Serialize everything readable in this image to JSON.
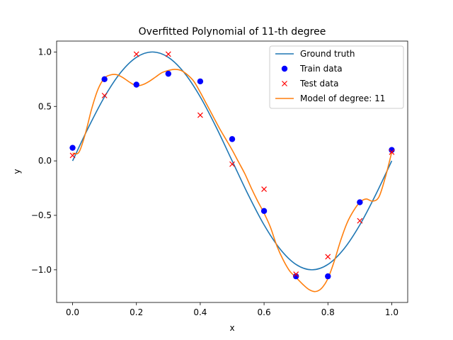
{
  "chart_data": {
    "type": "line",
    "title": "Overfitted Polynomial of 11-th degree",
    "xlabel": "x",
    "ylabel": "y",
    "xlim": [
      -0.05,
      1.05
    ],
    "ylim": [
      -1.3,
      1.1
    ],
    "xticks": [
      0.0,
      0.2,
      0.4,
      0.6,
      0.8,
      1.0
    ],
    "xtick_labels": [
      "0.0",
      "0.2",
      "0.4",
      "0.6",
      "0.8",
      "1.0"
    ],
    "yticks": [
      -1.0,
      -0.5,
      0.0,
      0.5,
      1.0
    ],
    "ytick_labels": [
      "−1.0",
      "−0.5",
      "0.0",
      "0.5",
      "1.0"
    ],
    "grid": false,
    "legend_position": "top-right",
    "series": [
      {
        "name": "Ground truth",
        "kind": "line",
        "color": "#1f77b4",
        "x": [
          0.0,
          0.05,
          0.1,
          0.15,
          0.2,
          0.25,
          0.3,
          0.35,
          0.4,
          0.45,
          0.5,
          0.55,
          0.6,
          0.65,
          0.7,
          0.75,
          0.8,
          0.85,
          0.9,
          0.95,
          1.0
        ],
        "y": [
          0.0,
          0.309,
          0.588,
          0.809,
          0.951,
          1.0,
          0.951,
          0.809,
          0.588,
          0.309,
          0.0,
          -0.309,
          -0.588,
          -0.809,
          -0.951,
          -1.0,
          -0.951,
          -0.809,
          -0.588,
          -0.309,
          0.0
        ]
      },
      {
        "name": "Train data",
        "kind": "scatter-dot",
        "color": "#0000ff",
        "x": [
          0.0,
          0.1,
          0.2,
          0.3,
          0.4,
          0.5,
          0.6,
          0.7,
          0.8,
          0.9,
          1.0
        ],
        "y": [
          0.12,
          0.75,
          0.7,
          0.8,
          0.73,
          0.2,
          -0.46,
          -1.06,
          -1.06,
          -0.38,
          0.1
        ]
      },
      {
        "name": "Test data",
        "kind": "scatter-x",
        "color": "#ff0000",
        "x": [
          0.0,
          0.1,
          0.2,
          0.3,
          0.4,
          0.5,
          0.6,
          0.7,
          0.8,
          0.9,
          1.0
        ],
        "y": [
          0.05,
          0.6,
          0.98,
          0.98,
          0.42,
          -0.03,
          -0.26,
          -1.04,
          -0.88,
          -0.55,
          0.08
        ]
      },
      {
        "name": "Model of degree: 11",
        "kind": "line",
        "color": "#ff7f0e",
        "x": [
          0.0,
          0.02,
          0.04,
          0.06,
          0.08,
          0.1,
          0.12,
          0.14,
          0.16,
          0.18,
          0.2,
          0.22,
          0.24,
          0.26,
          0.28,
          0.3,
          0.32,
          0.34,
          0.36,
          0.38,
          0.4,
          0.42,
          0.44,
          0.46,
          0.48,
          0.5,
          0.52,
          0.54,
          0.56,
          0.58,
          0.6,
          0.62,
          0.64,
          0.66,
          0.68,
          0.7,
          0.72,
          0.74,
          0.76,
          0.78,
          0.8,
          0.82,
          0.84,
          0.86,
          0.88,
          0.9,
          0.92,
          0.94,
          0.96,
          0.98,
          1.0
        ],
        "y": [
          0.07,
          0.08,
          0.25,
          0.48,
          0.66,
          0.76,
          0.79,
          0.79,
          0.76,
          0.72,
          0.69,
          0.7,
          0.73,
          0.77,
          0.81,
          0.83,
          0.84,
          0.83,
          0.79,
          0.73,
          0.63,
          0.52,
          0.41,
          0.3,
          0.2,
          0.1,
          -0.01,
          -0.12,
          -0.25,
          -0.37,
          -0.48,
          -0.61,
          -0.78,
          -0.91,
          -1.01,
          -1.07,
          -1.13,
          -1.18,
          -1.2,
          -1.17,
          -1.08,
          -0.92,
          -0.73,
          -0.57,
          -0.46,
          -0.38,
          -0.35,
          -0.37,
          -0.33,
          -0.15,
          0.08
        ]
      }
    ]
  }
}
